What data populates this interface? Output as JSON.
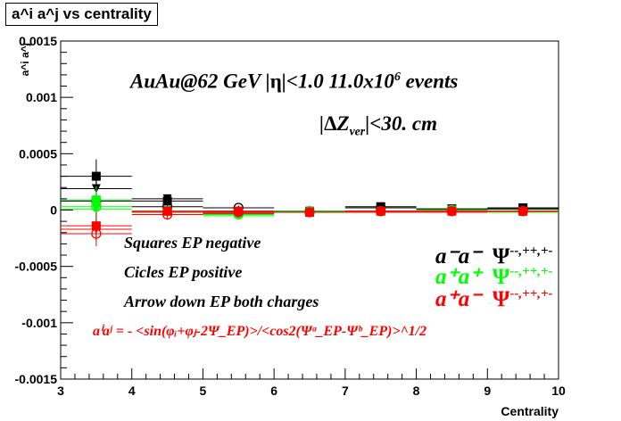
{
  "chart_data": {
    "type": "scatter",
    "title": "a^i a^j vs centrality",
    "xlabel": "Centrality",
    "ylabel": "a^i a^j",
    "xlim": [
      3,
      10
    ],
    "ylim": [
      -0.0015,
      0.0015
    ],
    "x_ticks": [
      "3",
      "4",
      "5",
      "6",
      "7",
      "8",
      "9",
      "10"
    ],
    "y_ticks": [
      "-0.0015",
      "-0.001",
      "-0.0005",
      "0",
      "0.0005",
      "0.001",
      "0.0015"
    ],
    "grid": false,
    "x": [
      3.5,
      4.5,
      5.5,
      6.5,
      7.5,
      8.5,
      9.5
    ],
    "series": [
      {
        "name": "a⁻a⁻ squares",
        "color": "#000000",
        "marker": "square",
        "values": [
          0.0003,
          8e-05,
          -1e-05,
          -2e-05,
          3e-05,
          1e-05,
          2e-05
        ],
        "errors": [
          0.00015,
          4e-05,
          2e-05,
          2e-05,
          2e-05,
          2e-05,
          2e-05
        ]
      },
      {
        "name": "a⁻a⁻ triangles",
        "color": "#000000",
        "marker": "triangle",
        "values": [
          0.00019,
          0.0001,
          -3e-05,
          -1e-05,
          2e-05,
          1e-05,
          1e-05
        ],
        "errors": [
          0.00012,
          4e-05,
          2e-05,
          2e-05,
          2e-05,
          2e-05,
          2e-05
        ]
      },
      {
        "name": "a⁻a⁻ circles",
        "color": "#000000",
        "marker": "circle",
        "values": [
          8e-05,
          3e-05,
          2e-05,
          -1e-05,
          2e-05,
          0.0,
          1e-05
        ],
        "errors": [
          0.0001,
          3e-05,
          2e-05,
          2e-05,
          2e-05,
          2e-05,
          2e-05
        ]
      },
      {
        "name": "a⁺a⁺ squares",
        "color": "#00ff00",
        "marker": "square",
        "values": [
          9e-05,
          -1e-05,
          -3e-05,
          -2e-05,
          -1e-05,
          0.0,
          -1e-05
        ],
        "errors": [
          0.00012,
          4e-05,
          2e-05,
          2e-05,
          2e-05,
          2e-05,
          2e-05
        ]
      },
      {
        "name": "a⁺a⁺ triangles",
        "color": "#00ff00",
        "marker": "triangle",
        "values": [
          1e-05,
          -2e-05,
          -5e-05,
          -2e-05,
          -2e-05,
          -1e-05,
          -2e-05
        ],
        "errors": [
          0.0001,
          4e-05,
          2e-05,
          2e-05,
          2e-05,
          2e-05,
          2e-05
        ]
      },
      {
        "name": "a⁺a⁺ circles",
        "color": "#00ff00",
        "marker": "circle",
        "values": [
          3e-05,
          -1e-05,
          -4e-05,
          -1e-05,
          -1e-05,
          0.0,
          -1e-05
        ],
        "errors": [
          0.0001,
          3e-05,
          2e-05,
          2e-05,
          2e-05,
          2e-05,
          2e-05
        ]
      },
      {
        "name": "a⁺a⁻ squares",
        "color": "#ff0000",
        "marker": "square",
        "values": [
          -0.00014,
          -1e-05,
          -1e-05,
          -2e-05,
          -1e-05,
          -1e-05,
          -1e-05
        ],
        "errors": [
          0.00012,
          4e-05,
          2e-05,
          2e-05,
          2e-05,
          2e-05,
          2e-05
        ]
      },
      {
        "name": "a⁺a⁻ triangles",
        "color": "#ff0000",
        "marker": "triangle",
        "values": [
          -0.00017,
          -2e-05,
          -3e-05,
          -2e-05,
          -2e-05,
          -2e-05,
          -1e-05
        ],
        "errors": [
          0.0001,
          4e-05,
          2e-05,
          2e-05,
          2e-05,
          2e-05,
          2e-05
        ]
      },
      {
        "name": "a⁺a⁻ circles",
        "color": "#ff0000",
        "marker": "circle",
        "values": [
          -0.00021,
          -4e-05,
          -2e-05,
          -2e-05,
          -1e-05,
          -1e-05,
          -1e-05
        ],
        "errors": [
          0.00011,
          4e-05,
          2e-05,
          2e-05,
          2e-05,
          2e-05,
          2e-05
        ]
      }
    ],
    "annotations": {
      "line1_a": "AuAu@62 GeV |",
      "line1_eta": "η",
      "line1_b": "|<1.0 11.0x10",
      "line1_exp": "6",
      "line1_c": " events",
      "line2_a": "|",
      "line2_delta": "Δ",
      "line2_z": "Z",
      "line2_sub": "ver",
      "line2_b": "|<30. cm",
      "legend_squares": "Squares EP negative",
      "legend_circles": "Cicles EP positive",
      "legend_arrow": "Arrow down EP both charges",
      "formula": "aⁱaʲ = - <sin(φᵢ+φⱼ-2Ψ_EP)>/<cos2(Ψᵃ_EP-Ψᵇ_EP)>^1/2",
      "lbl_mm": "a⁻a⁻",
      "lbl_pp": "a⁺a⁺",
      "lbl_pm": "a⁺a⁻",
      "psi": "Ψ",
      "psi_sup": "--,++,+-"
    }
  }
}
